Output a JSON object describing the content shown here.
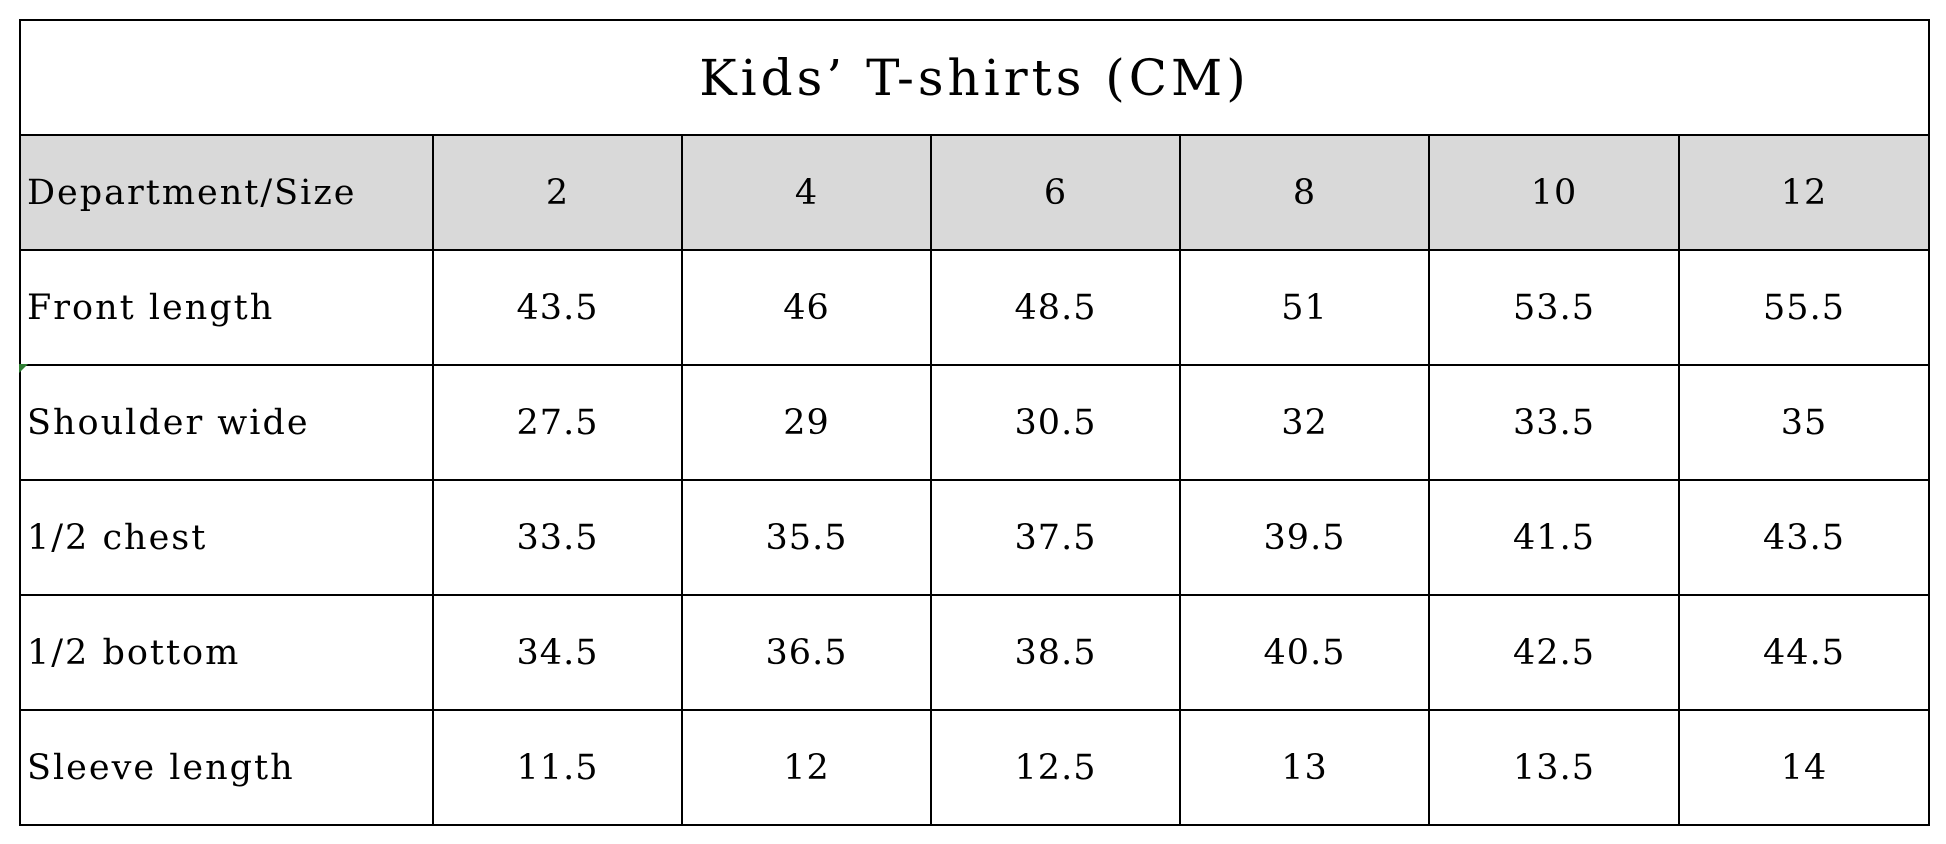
{
  "table": {
    "title": "Kids’ T-shirts (CM)",
    "header_label": "Department/Size",
    "sizes": [
      "2",
      "4",
      "6",
      "8",
      "10",
      "12"
    ],
    "rows": [
      {
        "label": "Front length",
        "values": [
          "43.5",
          "46",
          "48.5",
          "51",
          "53.5",
          "55.5"
        ]
      },
      {
        "label": "Shoulder wide",
        "values": [
          "27.5",
          "29",
          "30.5",
          "32",
          "33.5",
          "35"
        ]
      },
      {
        "label": "1/2 chest",
        "values": [
          "33.5",
          "35.5",
          "37.5",
          "39.5",
          "41.5",
          "43.5"
        ]
      },
      {
        "label": "1/2 bottom",
        "values": [
          "34.5",
          "36.5",
          "38.5",
          "40.5",
          "42.5",
          "44.5"
        ]
      },
      {
        "label": "Sleeve length",
        "values": [
          "11.5",
          "12",
          "12.5",
          "13",
          "13.5",
          "14"
        ]
      }
    ]
  },
  "colors": {
    "header_background": "#d9d9d9",
    "border": "#000000",
    "corner_mark": "#2e7d32"
  }
}
